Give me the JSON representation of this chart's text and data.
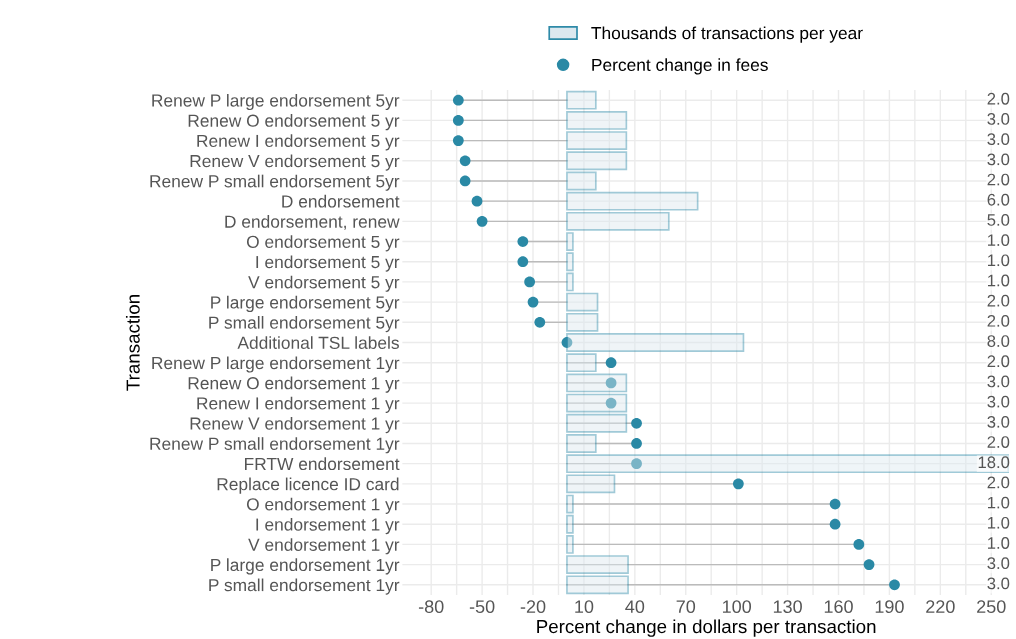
{
  "chart_data": {
    "type": "bar",
    "orientation": "horizontal",
    "xlabel": "Percent change in dollars per transaction",
    "ylabel": "Transaction",
    "categories": [
      "Renew P large endorsement 5yr",
      "Renew O endorsement 5 yr",
      "Renew I endorsement 5 yr",
      "Renew V endorsement 5 yr",
      "Renew P small endorsement 5yr",
      "D endorsement",
      "D endorsement, renew",
      "O endorsement 5 yr",
      "I endorsement 5 yr",
      "V endorsement 5 yr",
      "P large endorsement 5yr",
      "P small endorsement 5yr",
      "Additional TSL labels",
      "Renew P large endorsement 1yr",
      "Renew O endorsement 1 yr",
      "Renew I endorsement 1 yr",
      "Renew V endorsement 1 yr",
      "Renew P small endorsement 1yr",
      "FRTW endorsement",
      "Replace licence ID card",
      "O endorsement 1 yr",
      "I endorsement 1 yr",
      "V endorsement 1 yr",
      "P large endorsement 1yr",
      "P small endorsement 1yr"
    ],
    "series": [
      {
        "name": "Thousands of transactions per year",
        "color": "#dce8ef",
        "values": [
          17,
          35,
          35,
          35,
          17,
          77,
          60,
          3.5,
          3.5,
          3.5,
          18,
          18,
          104,
          17,
          35,
          35,
          35,
          17,
          260,
          28,
          3.5,
          3.5,
          3.5,
          36,
          36
        ]
      },
      {
        "name": "Percent change in fees",
        "type": "lollipop",
        "color": "#2a89a5",
        "values": [
          -64,
          -64,
          -64,
          -60,
          -60,
          -53,
          -50,
          -26,
          -26,
          -22,
          -20,
          -16,
          0,
          26,
          26,
          26,
          41,
          41,
          41,
          101,
          158,
          158,
          172,
          178,
          193
        ]
      }
    ],
    "xlim": [
      -97,
      261
    ],
    "xticks": [
      -80,
      {
        "value": -65,
        "label": null
      },
      -50,
      {
        "value": -35,
        "label": null
      },
      -20,
      {
        "value": -5,
        "label": null
      },
      10,
      {
        "value": 25,
        "label": null
      },
      40,
      {
        "value": 55,
        "label": null
      },
      70,
      {
        "value": 85,
        "label": null
      },
      100,
      {
        "value": 115,
        "label": null
      },
      130,
      {
        "value": 145,
        "label": null
      },
      160,
      {
        "value": 175,
        "label": null
      },
      190,
      {
        "value": 205,
        "label": null
      },
      220,
      {
        "value": 235,
        "label": null
      },
      250
    ],
    "annotations": [
      {
        "text": "2.0",
        "y": "Renew P large endorsement 5yr"
      },
      {
        "text": "3.0",
        "y": "Renew O endorsement 5 yr"
      },
      {
        "text": "3.0",
        "y": "Renew I endorsement 5 yr"
      },
      {
        "text": "3.0",
        "y": "Renew V endorsement 5 yr"
      },
      {
        "text": "2.0",
        "y": "Renew P small endorsement 5yr"
      },
      {
        "text": "6.0",
        "y": "D endorsement"
      },
      {
        "text": "5.0",
        "y": "D endorsement, renew"
      },
      {
        "text": "1.0",
        "y": "O endorsement 5 yr"
      },
      {
        "text": "1.0",
        "y": "I endorsement 5 yr"
      },
      {
        "text": "1.0",
        "y": "V endorsement 5 yr"
      },
      {
        "text": "2.0",
        "y": "P large endorsement 5yr"
      },
      {
        "text": "2.0",
        "y": "P small endorsement 5yr"
      },
      {
        "text": "8.0",
        "y": "Additional TSL labels"
      },
      {
        "text": "2.0",
        "y": "Renew P large endorsement 1yr"
      },
      {
        "text": "3.0",
        "y": "Renew O endorsement 1 yr"
      },
      {
        "text": "3.0",
        "y": "Renew I endorsement 1 yr"
      },
      {
        "text": "3.0",
        "y": "Renew V endorsement 1 yr"
      },
      {
        "text": "2.0",
        "y": "Renew P small endorsement 1yr"
      },
      {
        "text": "18.0",
        "y": "FRTW endorsement"
      },
      {
        "text": "2.0",
        "y": "Replace licence ID card"
      },
      {
        "text": "1.0",
        "y": "O endorsement 1 yr"
      },
      {
        "text": "1.0",
        "y": "I endorsement 1 yr"
      },
      {
        "text": "1.0",
        "y": "V endorsement 1 yr"
      },
      {
        "text": "3.0",
        "y": "P large endorsement 1yr"
      },
      {
        "text": "3.0",
        "y": "P small endorsement 1yr"
      }
    ],
    "grid": true,
    "legend": "top"
  }
}
